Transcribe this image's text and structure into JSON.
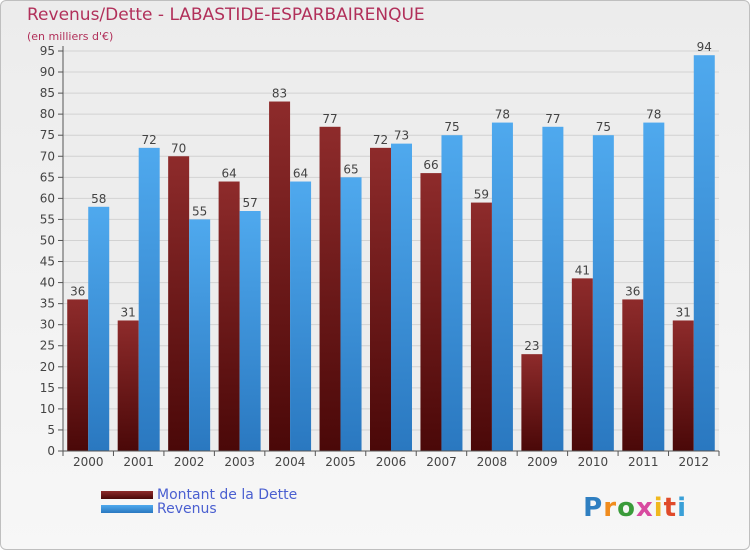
{
  "chart_data": {
    "type": "bar",
    "title": "Revenus/Dette - LABASTIDE-ESPARBAIRENQUE",
    "subtitle": "(en milliers d'€)",
    "categories": [
      "2000",
      "2001",
      "2002",
      "2003",
      "2004",
      "2005",
      "2006",
      "2007",
      "2008",
      "2009",
      "2010",
      "2011",
      "2012"
    ],
    "series": [
      {
        "name": "Montant de la Dette",
        "color": "#7a1a1a",
        "values": [
          36,
          31,
          70,
          64,
          83,
          77,
          72,
          66,
          59,
          23,
          41,
          36,
          31
        ]
      },
      {
        "name": "Revenus",
        "color": "#3a8fd8",
        "values": [
          58,
          72,
          55,
          57,
          64,
          65,
          73,
          75,
          78,
          77,
          75,
          78,
          94
        ]
      }
    ],
    "yticks": [
      0,
      5,
      10,
      15,
      20,
      25,
      30,
      35,
      40,
      45,
      50,
      55,
      60,
      65,
      70,
      75,
      80,
      85,
      90,
      95
    ],
    "ylim": [
      0,
      95
    ],
    "grid": true,
    "legend_position": "bottom-left"
  },
  "brand": {
    "logo_letters": [
      "P",
      "r",
      "o",
      "x",
      "i",
      "t",
      "i"
    ],
    "logo_colors": [
      "#2f7fc1",
      "#f08c1e",
      "#3a9b3a",
      "#d84aa0",
      "#f0b81e",
      "#e04a2a",
      "#3aa0d8"
    ]
  }
}
